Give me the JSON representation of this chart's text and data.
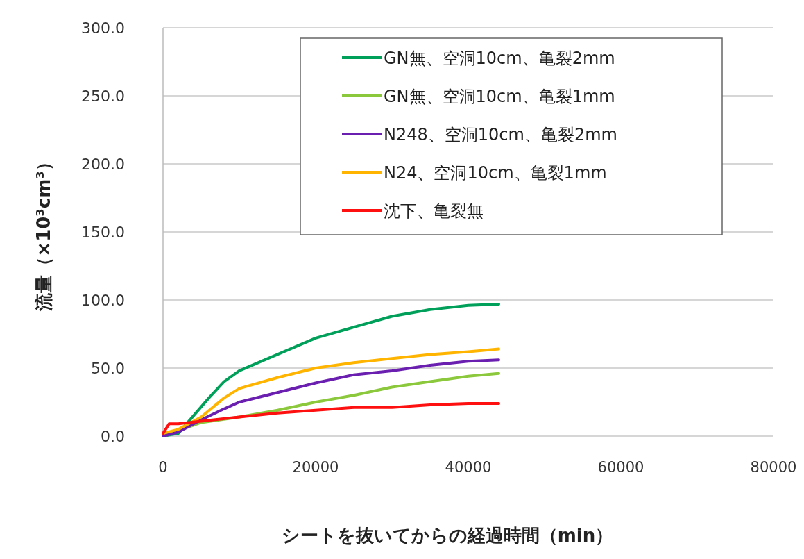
{
  "chart_data": {
    "type": "line",
    "xlabel": "シートを抜いてからの経過時間（min）",
    "ylabel": "流量（×10³cm³）",
    "xlim": [
      0,
      80000
    ],
    "xticks": [
      0,
      20000,
      40000,
      60000,
      80000
    ],
    "ylim": [
      0,
      300
    ],
    "yticks": [
      {
        "value": 0,
        "label": "0.0"
      },
      {
        "value": 50,
        "label": "50.0"
      },
      {
        "value": 100,
        "label": "100.0"
      },
      {
        "value": 150,
        "label": "150.0"
      },
      {
        "value": 200,
        "label": "200.0"
      },
      {
        "value": 250,
        "label": "250.0"
      },
      {
        "value": 300,
        "label": "300.0"
      }
    ],
    "grid": "y",
    "legend": "top right",
    "line_style": "solid",
    "series": [
      {
        "name": "GN無、空洞10cm、亀裂2mm",
        "color": "#00a05a",
        "x": [
          0,
          2000,
          4000,
          6000,
          8000,
          10000,
          15000,
          20000,
          25000,
          30000,
          35000,
          40000,
          44000
        ],
        "values": [
          0,
          2,
          15,
          28,
          40,
          48,
          60,
          72,
          80,
          88,
          93,
          96,
          97
        ]
      },
      {
        "name": "GN無、空洞10cm、亀裂1mm",
        "color": "#8cc83c",
        "x": [
          0,
          2000,
          5000,
          10000,
          15000,
          20000,
          25000,
          30000,
          35000,
          40000,
          44000
        ],
        "values": [
          0,
          4,
          10,
          14,
          19,
          25,
          30,
          36,
          40,
          44,
          46
        ]
      },
      {
        "name": "N248、空洞10cm、亀裂2mm",
        "color": "#6a1fb0",
        "x": [
          0,
          2000,
          5000,
          8000,
          10000,
          15000,
          20000,
          25000,
          30000,
          35000,
          40000,
          44000
        ],
        "values": [
          0,
          3,
          12,
          20,
          25,
          32,
          39,
          45,
          48,
          52,
          55,
          56
        ]
      },
      {
        "name": "N24、空洞10cm、亀裂1mm",
        "color": "#ffb400",
        "x": [
          0,
          2000,
          5000,
          8000,
          10000,
          15000,
          20000,
          25000,
          30000,
          35000,
          40000,
          44000
        ],
        "values": [
          2,
          5,
          14,
          28,
          35,
          43,
          50,
          54,
          57,
          60,
          62,
          64
        ]
      },
      {
        "name": "沈下、亀裂無",
        "color": "#ff1010",
        "x": [
          0,
          800,
          2000,
          5000,
          10000,
          15000,
          20000,
          25000,
          30000,
          35000,
          40000,
          44000
        ],
        "values": [
          2,
          9,
          9,
          11,
          14,
          17,
          19,
          21,
          21,
          23,
          24,
          24
        ]
      }
    ]
  }
}
